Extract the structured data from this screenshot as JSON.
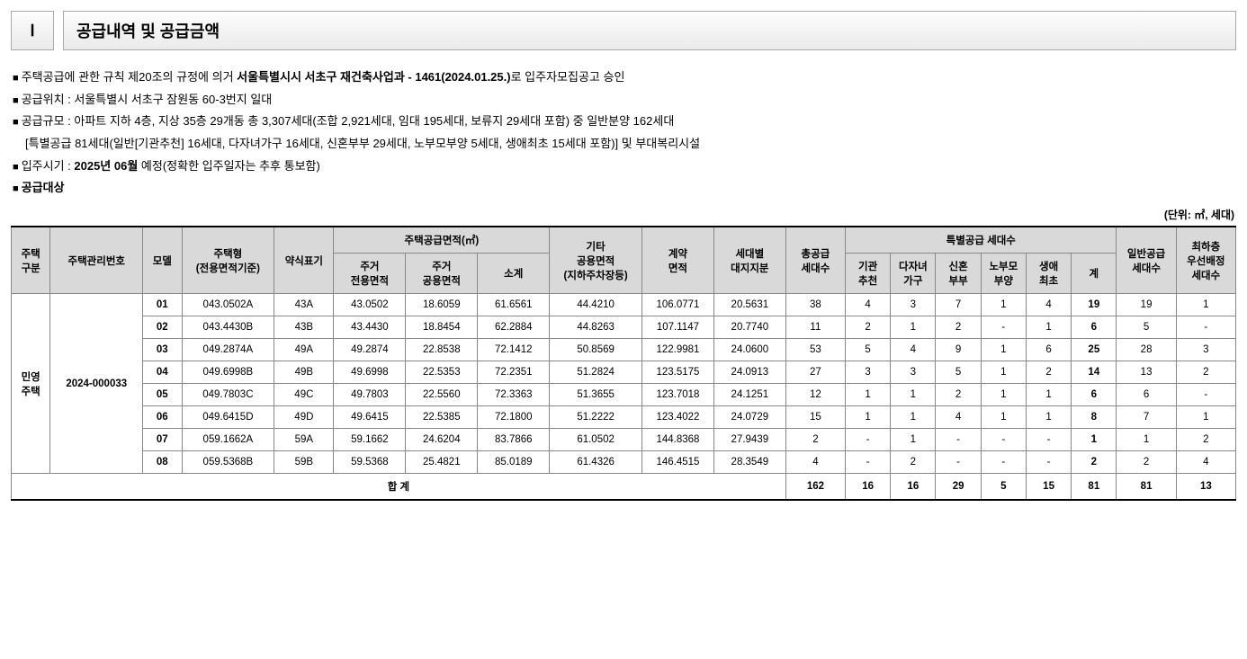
{
  "section": {
    "num": "Ⅰ",
    "title": "공급내역 및 공급금액"
  },
  "intro": {
    "l1a": "주택공급에 관한 규칙 제20조의 규정에 의거 ",
    "l1b": "서울특별시시 서초구 재건축사업과 - 1461(2024.01.25.)",
    "l1c": "로 입주자모집공고 승인",
    "l2": "공급위치 : 서울특별시 서초구 잠원동 60-3번지 일대",
    "l3": "공급규모 : 아파트 지하 4층, 지상 35층 29개동 총 3,307세대(조합 2,921세대, 임대 195세대, 보류지 29세대 포함) 중 일반분양 162세대",
    "l3b": "[특별공급 81세대(일반[기관추천] 16세대, 다자녀가구 16세대, 신혼부부 29세대, 노부모부양 5세대, 생애최초 15세대 포함)] 및 부대복리시설",
    "l4a": "입주시기 : ",
    "l4b": "2025년 06월",
    "l4c": " 예정(정확한 입주일자는 추후 통보함)",
    "l5": "공급대상"
  },
  "unit_label": "(단위: ㎡, 세대)",
  "headers": {
    "h_div": "주택\n구분",
    "h_mgmt": "주택관리번호",
    "h_model": "모델",
    "h_type": "주택형\n(전용면적기준)",
    "h_abbr": "약식표기",
    "h_supply_area": "주택공급면적(㎡)",
    "h_excl": "주거\n전용면적",
    "h_common": "주거\n공용면적",
    "h_subtotal": "소계",
    "h_other": "기타\n공용면적\n(지하주차장등)",
    "h_contract": "계약\n면적",
    "h_land": "세대별\n대지지분",
    "h_total_units": "총공급\n세대수",
    "h_special": "특별공급 세대수",
    "h_sp1": "기관\n추천",
    "h_sp2": "다자녀\n가구",
    "h_sp3": "신혼\n부부",
    "h_sp4": "노부모\n부양",
    "h_sp5": "생애\n최초",
    "h_sp6": "계",
    "h_general": "일반공급\n세대수",
    "h_lowest": "최하층\n우선배정\n세대수"
  },
  "row_head": {
    "div": "민영\n주택",
    "mgmt": "2024-000033"
  },
  "rows": [
    {
      "m": "01",
      "type": "043.0502A",
      "abbr": "43A",
      "excl": "43.0502",
      "common": "18.6059",
      "sub": "61.6561",
      "other": "44.4210",
      "contract": "106.0771",
      "land": "20.5631",
      "tot": "38",
      "s1": "4",
      "s2": "3",
      "s3": "7",
      "s4": "1",
      "s5": "4",
      "ssum": "19",
      "gen": "19",
      "low": "1"
    },
    {
      "m": "02",
      "type": "043.4430B",
      "abbr": "43B",
      "excl": "43.4430",
      "common": "18.8454",
      "sub": "62.2884",
      "other": "44.8263",
      "contract": "107.1147",
      "land": "20.7740",
      "tot": "11",
      "s1": "2",
      "s2": "1",
      "s3": "2",
      "s4": "-",
      "s5": "1",
      "ssum": "6",
      "gen": "5",
      "low": "-"
    },
    {
      "m": "03",
      "type": "049.2874A",
      "abbr": "49A",
      "excl": "49.2874",
      "common": "22.8538",
      "sub": "72.1412",
      "other": "50.8569",
      "contract": "122.9981",
      "land": "24.0600",
      "tot": "53",
      "s1": "5",
      "s2": "4",
      "s3": "9",
      "s4": "1",
      "s5": "6",
      "ssum": "25",
      "gen": "28",
      "low": "3"
    },
    {
      "m": "04",
      "type": "049.6998B",
      "abbr": "49B",
      "excl": "49.6998",
      "common": "22.5353",
      "sub": "72.2351",
      "other": "51.2824",
      "contract": "123.5175",
      "land": "24.0913",
      "tot": "27",
      "s1": "3",
      "s2": "3",
      "s3": "5",
      "s4": "1",
      "s5": "2",
      "ssum": "14",
      "gen": "13",
      "low": "2"
    },
    {
      "m": "05",
      "type": "049.7803C",
      "abbr": "49C",
      "excl": "49.7803",
      "common": "22.5560",
      "sub": "72.3363",
      "other": "51.3655",
      "contract": "123.7018",
      "land": "24.1251",
      "tot": "12",
      "s1": "1",
      "s2": "1",
      "s3": "2",
      "s4": "1",
      "s5": "1",
      "ssum": "6",
      "gen": "6",
      "low": "-"
    },
    {
      "m": "06",
      "type": "049.6415D",
      "abbr": "49D",
      "excl": "49.6415",
      "common": "22.5385",
      "sub": "72.1800",
      "other": "51.2222",
      "contract": "123.4022",
      "land": "24.0729",
      "tot": "15",
      "s1": "1",
      "s2": "1",
      "s3": "4",
      "s4": "1",
      "s5": "1",
      "ssum": "8",
      "gen": "7",
      "low": "1"
    },
    {
      "m": "07",
      "type": "059.1662A",
      "abbr": "59A",
      "excl": "59.1662",
      "common": "24.6204",
      "sub": "83.7866",
      "other": "61.0502",
      "contract": "144.8368",
      "land": "27.9439",
      "tot": "2",
      "s1": "-",
      "s2": "1",
      "s3": "-",
      "s4": "-",
      "s5": "-",
      "ssum": "1",
      "gen": "1",
      "low": "2"
    },
    {
      "m": "08",
      "type": "059.5368B",
      "abbr": "59B",
      "excl": "59.5368",
      "common": "25.4821",
      "sub": "85.0189",
      "other": "61.4326",
      "contract": "146.4515",
      "land": "28.3549",
      "tot": "4",
      "s1": "-",
      "s2": "2",
      "s3": "-",
      "s4": "-",
      "s5": "-",
      "ssum": "2",
      "gen": "2",
      "low": "4"
    }
  ],
  "total": {
    "label": "합 계",
    "tot": "162",
    "s1": "16",
    "s2": "16",
    "s3": "29",
    "s4": "5",
    "s5": "15",
    "ssum": "81",
    "gen": "81",
    "low": "13"
  }
}
